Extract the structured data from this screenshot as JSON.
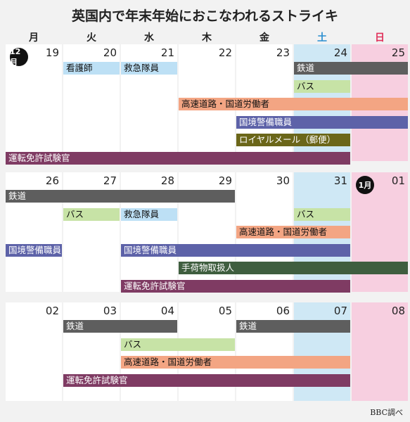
{
  "title": "英国内で年末年始におこなわれるストライキ",
  "weekdays": [
    "月",
    "火",
    "水",
    "木",
    "金",
    "土",
    "日"
  ],
  "colors": {
    "sat_text": "#2b8fd0",
    "sun_text": "#e0305a",
    "rail": "#5e5e5e",
    "ambulance": "#bde0f5",
    "bus": "#c7e3a6",
    "highways": "#f3a583",
    "border": "#5d62a8",
    "royal_mail": "#6b6619",
    "driving_exam": "#7f3b63",
    "baggage": "#3f5e3f"
  },
  "source": "BBC調べ",
  "weeks": [
    {
      "days": [
        "19",
        "20",
        "21",
        "22",
        "23",
        "24",
        "25"
      ],
      "month_badge": {
        "label": "12月",
        "col": 0
      },
      "bars": [
        {
          "label": "看護師",
          "start": 1,
          "end": 1,
          "row": 0,
          "color": "ambulance",
          "light": false
        },
        {
          "label": "救急隊員",
          "start": 2,
          "end": 2,
          "row": 0,
          "color": "ambulance",
          "light": false
        },
        {
          "label": "鉄道",
          "start": 5,
          "end": 6,
          "row": 0,
          "color": "rail",
          "light": true
        },
        {
          "label": "バス",
          "start": 5,
          "end": 5,
          "row": 1,
          "color": "bus",
          "light": false
        },
        {
          "label": "高速道路・国道労働者",
          "start": 3,
          "end": 6,
          "row": 2,
          "color": "highways",
          "light": false
        },
        {
          "label": "国境警備職員",
          "start": 4,
          "end": 6,
          "row": 3,
          "color": "border",
          "light": true
        },
        {
          "label": "ロイヤルメール（郵便）",
          "start": 4,
          "end": 5,
          "row": 4,
          "color": "royal_mail",
          "light": true
        },
        {
          "label": "運転免許試験官",
          "start": 0,
          "end": 5,
          "row": 5,
          "color": "driving_exam",
          "light": true
        }
      ]
    },
    {
      "days": [
        "26",
        "27",
        "28",
        "29",
        "30",
        "31",
        "01"
      ],
      "month_badge": {
        "label": "1月",
        "col": 6
      },
      "bars": [
        {
          "label": "鉄道",
          "start": 0,
          "end": 3,
          "row": 0,
          "color": "rail",
          "light": true
        },
        {
          "label": "バス",
          "start": 1,
          "end": 1,
          "row": 1,
          "color": "bus",
          "light": false
        },
        {
          "label": "救急隊員",
          "start": 2,
          "end": 2,
          "row": 1,
          "color": "ambulance",
          "light": false
        },
        {
          "label": "バス",
          "start": 5,
          "end": 5,
          "row": 1,
          "color": "bus",
          "light": false
        },
        {
          "label": "高速道路・国道労働者",
          "start": 4,
          "end": 5,
          "row": 2,
          "color": "highways",
          "light": false
        },
        {
          "label": "国境警備職員",
          "start": 0,
          "end": 0,
          "row": 3,
          "color": "border",
          "light": true
        },
        {
          "label": "国境警備職員",
          "start": 2,
          "end": 5,
          "row": 3,
          "color": "border",
          "light": true
        },
        {
          "label": "手荷物取扱人",
          "start": 3,
          "end": 6,
          "row": 4,
          "color": "baggage",
          "light": true
        },
        {
          "label": "運転免許試験官",
          "start": 2,
          "end": 5,
          "row": 5,
          "color": "driving_exam",
          "light": true
        }
      ]
    },
    {
      "days": [
        "02",
        "03",
        "04",
        "05",
        "06",
        "07",
        "08"
      ],
      "bars": [
        {
          "label": "鉄道",
          "start": 1,
          "end": 2,
          "row": 0,
          "color": "rail",
          "light": true
        },
        {
          "label": "鉄道",
          "start": 4,
          "end": 5,
          "row": 0,
          "color": "rail",
          "light": true
        },
        {
          "label": "バス",
          "start": 2,
          "end": 3,
          "row": 1,
          "color": "bus",
          "light": false
        },
        {
          "label": "高速道路・国道労働者",
          "start": 2,
          "end": 5,
          "row": 2,
          "color": "highways",
          "light": false
        },
        {
          "label": "運転免許試験官",
          "start": 1,
          "end": 5,
          "row": 3,
          "color": "driving_exam",
          "light": true
        }
      ]
    }
  ]
}
